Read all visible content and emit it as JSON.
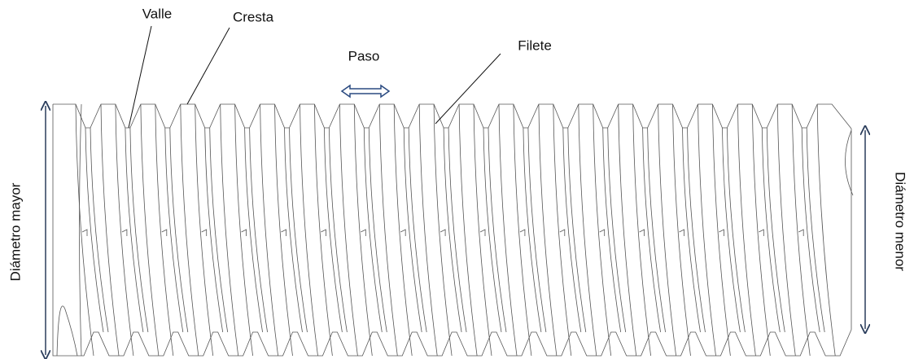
{
  "labels": {
    "valley": "Valle",
    "crest": "Cresta",
    "pitch": "Paso",
    "thread": "Filete",
    "major_diameter": "Diámetro mayor",
    "minor_diameter": "Diámetro menor"
  }
}
